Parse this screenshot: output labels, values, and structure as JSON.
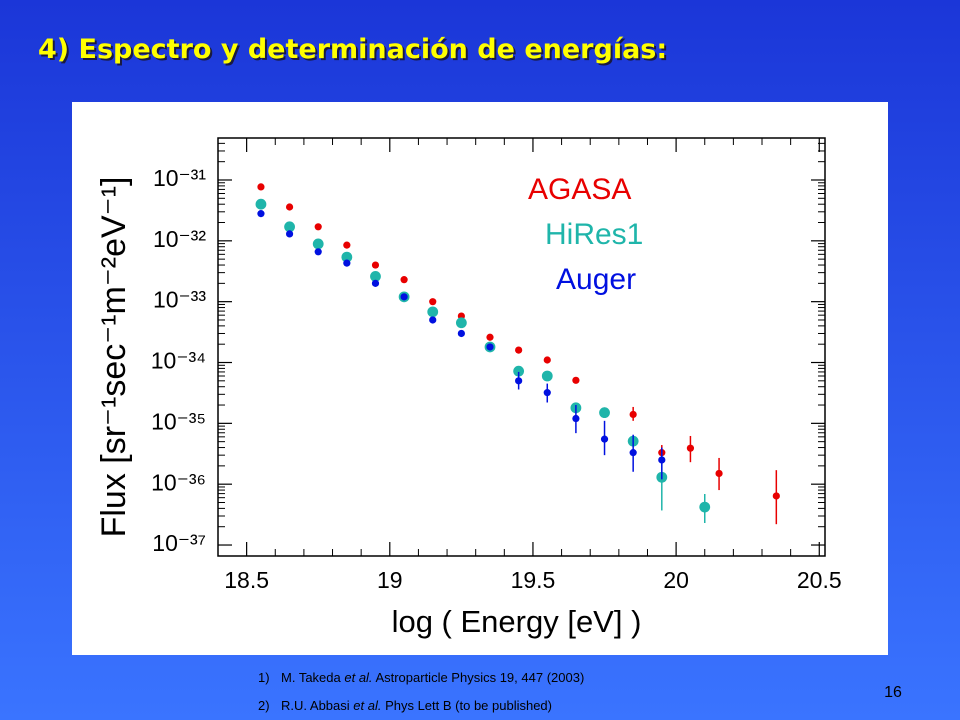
{
  "title": "4) Espectro y determinación de energías:",
  "chart_data": {
    "type": "scatter",
    "xlabel": "log ( Energy  [eV] )",
    "ylabel": "Flux  [sr⁻¹sec⁻¹m⁻²eV⁻¹]",
    "xlim": [
      18.4,
      20.52
    ],
    "ylim": [
      6.6e-38,
      4.9e-31
    ],
    "log_y": true,
    "xticks": [
      18.5,
      19,
      19.5,
      20,
      20.5
    ],
    "yticks": [
      {
        "value": 1e-37,
        "label": "10⁻³⁷"
      },
      {
        "value": 1e-36,
        "label": "10⁻³⁶"
      },
      {
        "value": 1e-35,
        "label": "10⁻³⁵"
      },
      {
        "value": 1e-34,
        "label": "10⁻³⁴"
      },
      {
        "value": 1e-33,
        "label": "10⁻³³"
      },
      {
        "value": 1e-32,
        "label": "10⁻³²"
      },
      {
        "value": 1e-31,
        "label": "10⁻³¹"
      }
    ],
    "legend": "upper right",
    "series": [
      {
        "name": "AGASA",
        "color": "#e80000",
        "x": [
          18.55,
          18.65,
          18.75,
          18.85,
          18.95,
          19.05,
          19.15,
          19.25,
          19.35,
          19.45,
          19.55,
          19.65,
          19.75,
          19.85,
          19.95,
          20.05,
          20.15,
          20.35
        ],
        "values": [
          7.7e-32,
          3.6e-32,
          1.7e-32,
          8.5e-33,
          4e-33,
          2.3e-33,
          1e-33,
          5.8e-34,
          2.6e-34,
          1.6e-34,
          1.1e-34,
          5.1e-35,
          1.6e-35,
          1.4e-35,
          3.3e-36,
          3.9e-36,
          1.5e-36,
          6.4e-37
        ],
        "y_low": [
          null,
          null,
          null,
          null,
          null,
          null,
          null,
          null,
          null,
          null,
          null,
          null,
          null,
          1.1e-35,
          2.2e-36,
          2.3e-36,
          8e-37,
          2.2e-37
        ],
        "y_high": [
          null,
          null,
          null,
          null,
          null,
          null,
          null,
          null,
          null,
          null,
          null,
          null,
          null,
          1.86e-35,
          4.4e-36,
          6.2e-36,
          2.7e-36,
          1.7e-36
        ]
      },
      {
        "name": "HiRes1",
        "color": "#1fb5aa",
        "x": [
          18.55,
          18.65,
          18.75,
          18.85,
          18.95,
          19.05,
          19.15,
          19.25,
          19.35,
          19.45,
          19.55,
          19.65,
          19.75,
          19.85,
          19.95,
          20.1
        ],
        "values": [
          4e-32,
          1.7e-32,
          8.9e-33,
          5.4e-33,
          2.6e-33,
          1.2e-33,
          6.8e-34,
          4.5e-34,
          1.8e-34,
          7.2e-35,
          6e-35,
          1.8e-35,
          1.5e-35,
          5.1e-36,
          1.3e-36,
          4.2e-37
        ],
        "y_low": [
          null,
          null,
          null,
          null,
          null,
          null,
          null,
          null,
          null,
          null,
          null,
          null,
          null,
          null,
          3.7e-37,
          2.3e-37
        ],
        "y_high": [
          null,
          null,
          null,
          null,
          null,
          null,
          null,
          null,
          null,
          null,
          null,
          null,
          null,
          null,
          3.6e-36,
          6.9e-37
        ]
      },
      {
        "name": "Auger",
        "color": "#0010e0",
        "x": [
          18.55,
          18.65,
          18.75,
          18.85,
          18.95,
          19.05,
          19.15,
          19.25,
          19.35,
          19.45,
          19.55,
          19.65,
          19.75,
          19.85,
          19.95
        ],
        "values": [
          2.8e-32,
          1.3e-32,
          6.6e-33,
          4.3e-33,
          2e-33,
          1.2e-33,
          5e-34,
          3e-34,
          1.8e-34,
          5e-35,
          3.2e-35,
          1.2e-35,
          5.5e-36,
          3.3e-36,
          2.5e-36
        ],
        "y_low": [
          null,
          null,
          null,
          null,
          null,
          null,
          null,
          null,
          null,
          3.6e-35,
          2.2e-35,
          6.9e-36,
          3e-36,
          1.6e-36,
          1.2e-36
        ],
        "y_high": [
          null,
          null,
          null,
          null,
          null,
          null,
          null,
          null,
          null,
          7e-35,
          4.5e-35,
          2e-35,
          1.1e-35,
          6.5e-36,
          4e-36
        ]
      }
    ]
  },
  "references": [
    {
      "number": "1)",
      "parts": [
        "M. Takeda ",
        "et al.",
        " Astroparticle Physics 19, 447 (2003)"
      ]
    },
    {
      "number": "2)",
      "parts": [
        "R.U. Abbasi ",
        "et al.",
        " Phys Lett B (to be published)"
      ]
    }
  ],
  "page_number": "16"
}
